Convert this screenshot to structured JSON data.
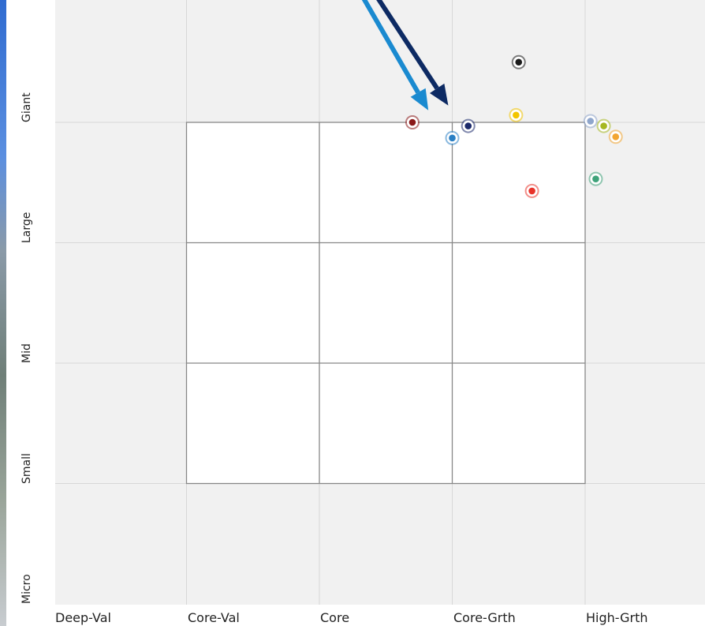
{
  "chart_data": {
    "type": "scatter",
    "x_categories": [
      "Deep-Val",
      "Core-Val",
      "Core",
      "Core-Grth",
      "High-Grth"
    ],
    "y_categories": [
      "Micro",
      "Small",
      "Mid",
      "Large",
      "Giant"
    ],
    "xlim": [
      0,
      5
    ],
    "ylim": [
      0,
      5
    ],
    "grid": true,
    "highlight_box": {
      "x": [
        1,
        4
      ],
      "y": [
        1,
        4
      ]
    },
    "points": [
      {
        "x": 3.5,
        "y": 4.5,
        "color": "#1a1a1a"
      },
      {
        "x": 2.7,
        "y": 4.0,
        "color": "#8b1a1a"
      },
      {
        "x": 3.0,
        "y": 3.87,
        "color": "#2a7fc4"
      },
      {
        "x": 3.12,
        "y": 3.97,
        "color": "#1c2a6b"
      },
      {
        "x": 3.48,
        "y": 4.06,
        "color": "#f2c500"
      },
      {
        "x": 4.04,
        "y": 4.01,
        "color": "#8fa6cc"
      },
      {
        "x": 4.14,
        "y": 3.97,
        "color": "#a6b821"
      },
      {
        "x": 4.23,
        "y": 3.88,
        "color": "#f2a531"
      },
      {
        "x": 4.08,
        "y": 3.53,
        "color": "#3fa37a"
      },
      {
        "x": 3.6,
        "y": 3.43,
        "color": "#e8332a"
      }
    ],
    "arrows": [
      {
        "color": "#0d2a63",
        "from": [
          2.37,
          5.15
        ],
        "to": [
          2.97,
          4.14
        ]
      },
      {
        "color": "#1a8ad0",
        "from": [
          2.27,
          5.15
        ],
        "to": [
          2.82,
          4.1
        ]
      }
    ]
  }
}
